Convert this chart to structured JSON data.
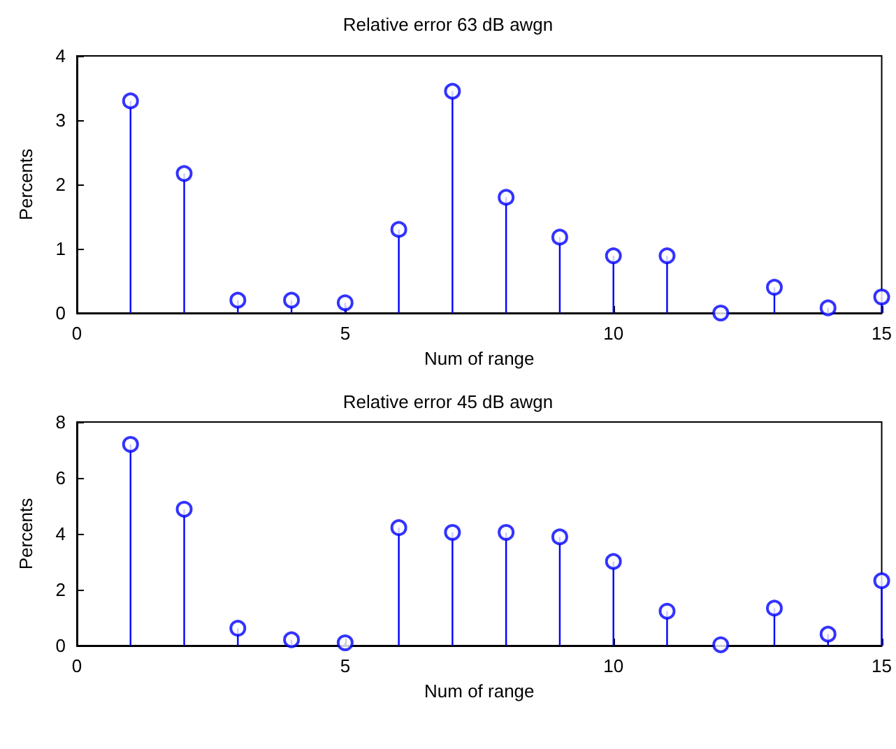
{
  "chart_data": [
    {
      "type": "lollipop",
      "title": "Relative error 63 dB awgn",
      "xlabel": "Num of range",
      "ylabel": "Percents",
      "x": [
        1,
        2,
        3,
        4,
        5,
        6,
        7,
        8,
        9,
        10,
        11,
        12,
        13,
        14,
        15
      ],
      "values": [
        3.3,
        2.17,
        0.2,
        0.2,
        0.16,
        1.3,
        3.45,
        1.8,
        1.18,
        0.89,
        0.89,
        0,
        0.4,
        0.08,
        0.25
      ],
      "color": "#0000ff",
      "marker": "circle",
      "xlim": [
        0,
        15
      ],
      "xticks": [
        0,
        5,
        10,
        15
      ],
      "ylim": [
        0,
        4
      ],
      "yticks": [
        0,
        1,
        2,
        3,
        4
      ],
      "grid": false
    },
    {
      "type": "lollipop",
      "title": "Relative error 45 dB awgn",
      "xlabel": "Num of range",
      "ylabel": "Percents",
      "x": [
        1,
        2,
        3,
        4,
        5,
        6,
        7,
        8,
        9,
        10,
        11,
        12,
        13,
        14,
        15
      ],
      "values": [
        7.2,
        4.88,
        0.62,
        0.21,
        0.1,
        4.22,
        4.05,
        4.05,
        3.89,
        3.01,
        1.23,
        0.03,
        1.34,
        0.41,
        2.32
      ],
      "color": "#0000ff",
      "marker": "circle",
      "xlim": [
        0,
        15
      ],
      "xticks": [
        0,
        5,
        10,
        15
      ],
      "ylim": [
        0,
        8
      ],
      "yticks": [
        0,
        2,
        4,
        6,
        8
      ],
      "grid": false
    }
  ]
}
